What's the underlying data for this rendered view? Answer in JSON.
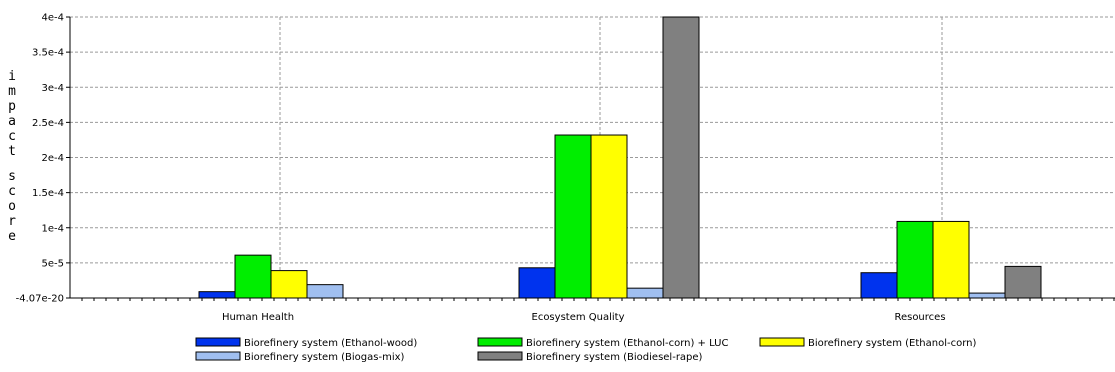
{
  "chart_data": {
    "type": "bar",
    "title": "",
    "xlabel": "",
    "ylabel": "impact score",
    "ylim": [
      0,
      0.0004
    ],
    "grid": true,
    "legend_position": "bottom",
    "y_ticks": [
      {
        "value": 0,
        "label": "-4.07e-20"
      },
      {
        "value": 5e-05,
        "label": "5e-5"
      },
      {
        "value": 0.0001,
        "label": "1e-4"
      },
      {
        "value": 0.00015,
        "label": "1.5e-4"
      },
      {
        "value": 0.0002,
        "label": "2e-4"
      },
      {
        "value": 0.00025,
        "label": "2.5e-4"
      },
      {
        "value": 0.0003,
        "label": "3e-4"
      },
      {
        "value": 0.00035,
        "label": "3.5e-4"
      },
      {
        "value": 0.0004,
        "label": "4e-4"
      }
    ],
    "categories": [
      "Human Health",
      "Ecosystem Quality",
      "Resources"
    ],
    "series": [
      {
        "name": "Biorefinery system (Ethanol-wood)",
        "color": "#0033ee",
        "values": [
          9e-06,
          4.3e-05,
          3.6e-05
        ]
      },
      {
        "name": "Biorefinery system (Ethanol-corn) + LUC",
        "color": "#00ee00",
        "values": [
          6.1e-05,
          0.000232,
          0.000109
        ]
      },
      {
        "name": "Biorefinery system (Ethanol-corn)",
        "color": "#ffff00",
        "values": [
          3.9e-05,
          0.000232,
          0.000109
        ]
      },
      {
        "name": "Biorefinery system (Biogas-mix)",
        "color": "#a0bff0",
        "values": [
          1.9e-05,
          1.4e-05,
          7e-06
        ]
      },
      {
        "name": "Biorefinery system (Biodiesel-rape)",
        "color": "#808080",
        "values": [
          0,
          0.0004,
          4.5e-05
        ]
      }
    ]
  }
}
